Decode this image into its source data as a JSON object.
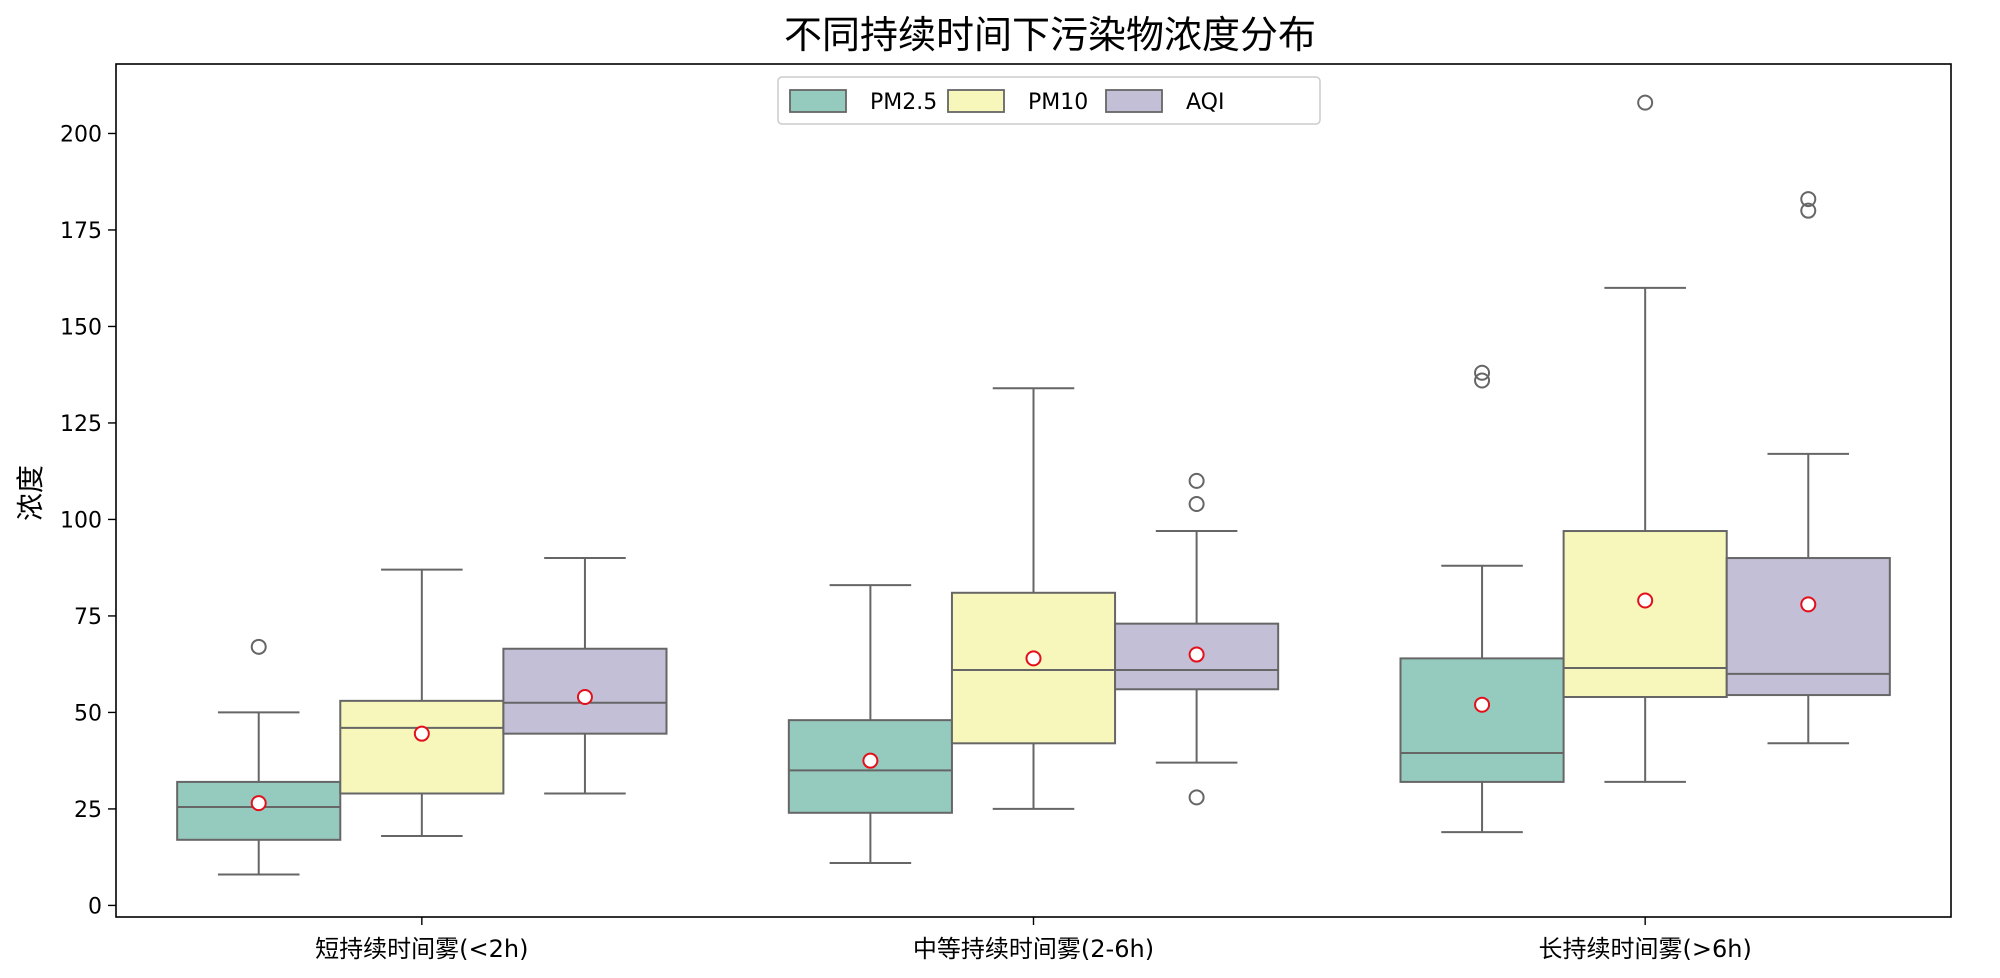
{
  "chart_data": {
    "type": "boxplot",
    "title": "不同持续时间下污染物浓度分布",
    "xlabel": "",
    "ylabel": "浓度",
    "ylim": [
      -3,
      218
    ],
    "yticks": [
      0,
      25,
      50,
      75,
      100,
      125,
      150,
      175,
      200
    ],
    "grid": false,
    "legend_position": "top-center",
    "categories": [
      "短持续时间雾(<2h)",
      "中等持续时间雾(2-6h)",
      "长持续时间雾(>6h)"
    ],
    "series": [
      {
        "name": "PM2.5",
        "color": "#95cabf",
        "boxes": [
          {
            "whisker_low": 8,
            "q1": 17,
            "median": 25.5,
            "q3": 32,
            "whisker_high": 50,
            "mean": 26.5,
            "outliers": [
              67
            ]
          },
          {
            "whisker_low": 11,
            "q1": 24,
            "median": 35,
            "q3": 48,
            "whisker_high": 83,
            "mean": 37.5,
            "outliers": []
          },
          {
            "whisker_low": 19,
            "q1": 32,
            "median": 39.5,
            "q3": 64,
            "whisker_high": 88,
            "mean": 52,
            "outliers": [
              136,
              138
            ]
          }
        ]
      },
      {
        "name": "PM10",
        "color": "#f7f7bb",
        "boxes": [
          {
            "whisker_low": 18,
            "q1": 29,
            "median": 46,
            "q3": 53,
            "whisker_high": 87,
            "mean": 44.5,
            "outliers": []
          },
          {
            "whisker_low": 25,
            "q1": 42,
            "median": 61,
            "q3": 81,
            "whisker_high": 134,
            "mean": 64,
            "outliers": []
          },
          {
            "whisker_low": 32,
            "q1": 54,
            "median": 61.5,
            "q3": 97,
            "whisker_high": 160,
            "mean": 79,
            "outliers": [
              208
            ]
          }
        ]
      },
      {
        "name": "AQI",
        "color": "#c3bfd7",
        "boxes": [
          {
            "whisker_low": 29,
            "q1": 44.5,
            "median": 52.5,
            "q3": 66.5,
            "whisker_high": 90,
            "mean": 54,
            "outliers": []
          },
          {
            "whisker_low": 37,
            "q1": 56,
            "median": 61,
            "q3": 73,
            "whisker_high": 97,
            "mean": 65,
            "outliers": [
              28,
              104,
              110
            ]
          },
          {
            "whisker_low": 42,
            "q1": 54.5,
            "median": 60,
            "q3": 90,
            "whisker_high": 117,
            "mean": 78,
            "outliers": [
              180,
              183
            ]
          }
        ]
      }
    ],
    "mean_marker_color": "#e3101b",
    "box_edge_color": "#666666"
  }
}
